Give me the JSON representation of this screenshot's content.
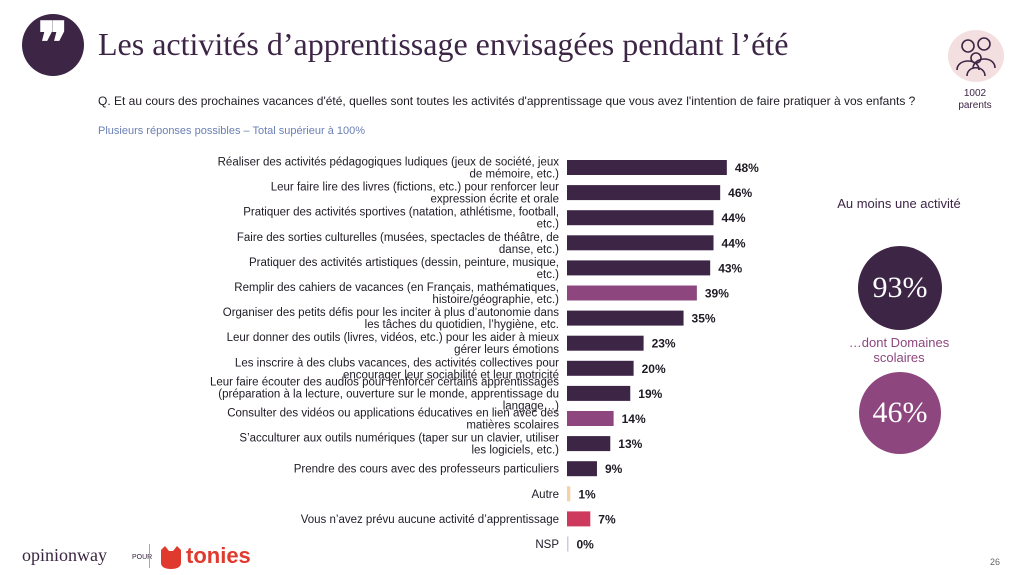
{
  "header": {
    "title": "Les activités d’apprentissage envisagées pendant l’été",
    "question": "Q. Et au cours des prochaines vacances d'été, quelles sont toutes les activités d'apprentissage que vous avez l'intention de faire pratiquer à vos enfants ?",
    "note": "Plusieurs réponses possibles – Total supérieur à 100%",
    "sample_label": "1002\nparents"
  },
  "chart_data": {
    "type": "bar",
    "orientation": "horizontal",
    "categories": [
      "Réaliser des activités pédagogiques ludiques (jeux de société, jeux de mémoire, etc.)",
      "Leur faire lire des livres (fictions, etc.) pour renforcer leur expression écrite et orale",
      "Pratiquer des activités sportives (natation, athlétisme, football, etc.)",
      "Faire des sorties culturelles (musées, spectacles de théâtre, de danse, etc.)",
      "Pratiquer des activités artistiques (dessin, peinture, musique, etc.)",
      "Remplir des cahiers de vacances (en Français, mathématiques, histoire/géographie, etc.)",
      "Organiser des petits défis pour les inciter à plus d’autonomie dans les tâches du quotidien, l’hygiène, etc.",
      "Leur donner des outils (livres, vidéos, etc.) pour les aider à mieux gérer leurs émotions",
      "Les inscrire à des clubs vacances, des activités collectives pour encourager leur sociabilité et leur motricité",
      "Leur faire écouter des audios pour renforcer certains apprentissages (préparation à la lecture, ouverture sur le monde, apprentissage du langage…)",
      "Consulter des vidéos ou applications éducatives en lien avec des matières scolaires",
      "S’acculturer aux outils numériques (taper sur un clavier, utiliser les logiciels, etc.)",
      "Prendre des cours avec des professeurs particuliers",
      "Autre",
      "Vous n’avez prévu aucune activité d’apprentissage",
      "NSP"
    ],
    "values": [
      48,
      46,
      44,
      44,
      43,
      39,
      35,
      23,
      20,
      19,
      14,
      13,
      9,
      1,
      7,
      0
    ],
    "value_labels": [
      "48%",
      "46%",
      "44%",
      "44%",
      "43%",
      "39%",
      "35%",
      "23%",
      "20%",
      "19%",
      "14%",
      "13%",
      "9%",
      "1%",
      "7%",
      "0%"
    ],
    "bar_colors": [
      "#3d2546",
      "#3d2546",
      "#3d2546",
      "#3d2546",
      "#3d2546",
      "#8d477e",
      "#3d2546",
      "#3d2546",
      "#3d2546",
      "#3d2546",
      "#8d477e",
      "#3d2546",
      "#3d2546",
      "#f3d2a6",
      "#cd3a5e",
      "#c8cde0"
    ],
    "xlim": [
      0,
      100
    ]
  },
  "summary": {
    "at_least_one_label": "Au moins une activité",
    "at_least_one_value": "93%",
    "school_label": "…dont Domaines scolaires",
    "school_value": "46%"
  },
  "colors": {
    "primary": "#3d2546",
    "secondary": "#8d477e",
    "autre": "#f3d2a6",
    "aucune": "#cd3a5e",
    "nsp": "#c8cde0",
    "tonies": "#e03a2e"
  },
  "footer": {
    "brand": "opinionway",
    "pour": "POUR",
    "partner": "tonies",
    "page_number": "26"
  }
}
